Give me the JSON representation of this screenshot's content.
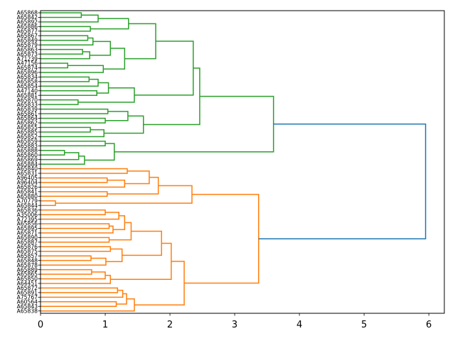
{
  "chart_data": {
    "type": "dendrogram",
    "orientation": "left",
    "title": "",
    "xlabel": "",
    "ylabel": "",
    "xlim": [
      0,
      6.24
    ],
    "xticks": [
      0,
      1,
      2,
      3,
      4,
      5,
      6
    ],
    "xtick_labels": [
      "0",
      "1",
      "2",
      "3",
      "4",
      "5",
      "6"
    ],
    "colors": {
      "green": "#2ca02c",
      "orange": "#ff7f0e",
      "blue": "#1f77b4"
    },
    "leaves": [
      "A65868",
      "A65842",
      "A65892",
      "A65886",
      "A65877",
      "A65867",
      "A65849",
      "A65879",
      "A65863",
      "A65873",
      "A71239",
      "A47156",
      "A65874",
      "A65896",
      "A65834",
      "A65858",
      "A65854",
      "A47140",
      "A65881",
      "A65870",
      "A65833",
      "A65839",
      "A65861",
      "A65864",
      "A65862",
      "A65855",
      "A65885",
      "A65852",
      "A65859",
      "A65883",
      "A65888",
      "A65860",
      "A65869",
      "A65884",
      "A65840",
      "A65831",
      "A96405",
      "A96404",
      "A65826",
      "A65841",
      "A65880",
      "A70779",
      "A65844",
      "A65836",
      "A35006",
      "A72395",
      "A65856",
      "A65895",
      "A65871",
      "A65890",
      "A65887",
      "A65876",
      "A65875",
      "A65857",
      "A65848",
      "A65878",
      "A65889",
      "A65865",
      "A65850",
      "A64451",
      "A65872",
      "A65891",
      "A75767",
      "A60564",
      "A65843",
      "A65838"
    ],
    "links": [
      [
        0,
        1,
        0.63,
        "green"
      ],
      [
        "L0",
        2,
        0.89,
        "green"
      ],
      [
        3,
        4,
        0.77,
        "green"
      ],
      [
        "L1",
        "L2",
        1.36,
        "green"
      ],
      [
        5,
        6,
        0.73,
        "green"
      ],
      [
        "L4",
        7,
        0.81,
        "green"
      ],
      [
        8,
        9,
        0.65,
        "green"
      ],
      [
        "L6",
        10,
        0.76,
        "green"
      ],
      [
        "L5",
        "L7",
        1.08,
        "green"
      ],
      [
        11,
        12,
        0.42,
        "green"
      ],
      [
        "L9",
        13,
        0.97,
        "green"
      ],
      [
        "L8",
        "L10",
        1.3,
        "green"
      ],
      [
        "L3",
        "L11",
        1.78,
        "green"
      ],
      [
        14,
        15,
        0.75,
        "green"
      ],
      [
        "L13",
        16,
        0.89,
        "green"
      ],
      [
        17,
        18,
        0.87,
        "green"
      ],
      [
        "L14",
        "L15",
        1.05,
        "green"
      ],
      [
        19,
        20,
        0.58,
        "green"
      ],
      [
        "L16",
        "L17",
        1.45,
        "green"
      ],
      [
        "L12",
        "L18",
        2.36,
        "green"
      ],
      [
        21,
        22,
        1.04,
        "green"
      ],
      [
        23,
        24,
        1.0,
        "green"
      ],
      [
        "L20",
        "L21",
        1.35,
        "green"
      ],
      [
        25,
        26,
        0.77,
        "green"
      ],
      [
        "L23",
        27,
        0.98,
        "green"
      ],
      [
        "L22",
        "L24",
        1.59,
        "green"
      ],
      [
        "L19",
        "L25",
        2.46,
        "green"
      ],
      [
        28,
        29,
        1.0,
        "green"
      ],
      [
        30,
        31,
        0.37,
        "green"
      ],
      [
        "L28",
        32,
        0.59,
        "green"
      ],
      [
        "L29",
        33,
        0.68,
        "green"
      ],
      [
        "L27",
        "L30",
        1.14,
        "green"
      ],
      [
        "L26",
        "L31",
        3.6,
        "green"
      ],
      [
        34,
        35,
        1.34,
        "orange"
      ],
      [
        36,
        37,
        1.03,
        "orange"
      ],
      [
        "L34",
        38,
        1.3,
        "orange"
      ],
      [
        "L33",
        "L35",
        1.68,
        "orange"
      ],
      [
        39,
        40,
        1.03,
        "orange"
      ],
      [
        "L36",
        "L37",
        1.82,
        "orange"
      ],
      [
        41,
        42,
        0.23,
        "orange"
      ],
      [
        "L38",
        "L39",
        2.34,
        "orange"
      ],
      [
        43,
        44,
        1.0,
        "orange"
      ],
      [
        "L41",
        45,
        1.21,
        "orange"
      ],
      [
        46,
        47,
        1.06,
        "orange"
      ],
      [
        "L43",
        48,
        1.12,
        "orange"
      ],
      [
        "L42",
        "L44",
        1.3,
        "orange"
      ],
      [
        49,
        50,
        1.06,
        "orange"
      ],
      [
        "L45",
        "L46",
        1.4,
        "orange"
      ],
      [
        51,
        52,
        1.08,
        "orange"
      ],
      [
        53,
        54,
        0.78,
        "orange"
      ],
      [
        "L49",
        55,
        1.01,
        "orange"
      ],
      [
        "L48",
        "L50",
        1.26,
        "orange"
      ],
      [
        "L47",
        "L51",
        1.87,
        "orange"
      ],
      [
        56,
        57,
        0.79,
        "orange"
      ],
      [
        "L53",
        58,
        1.0,
        "orange"
      ],
      [
        "L54",
        59,
        1.08,
        "orange"
      ],
      [
        "L52",
        "L55",
        2.02,
        "orange"
      ],
      [
        60,
        61,
        1.19,
        "orange"
      ],
      [
        "L57",
        62,
        1.27,
        "orange"
      ],
      [
        63,
        64,
        1.17,
        "orange"
      ],
      [
        "L58",
        "L59",
        1.33,
        "orange"
      ],
      [
        "L60",
        65,
        1.45,
        "orange"
      ],
      [
        "L56",
        "L61",
        2.22,
        "orange"
      ],
      [
        "L40",
        "L62",
        3.37,
        "orange"
      ],
      [
        "L32",
        "L63",
        5.95,
        "blue"
      ]
    ]
  }
}
